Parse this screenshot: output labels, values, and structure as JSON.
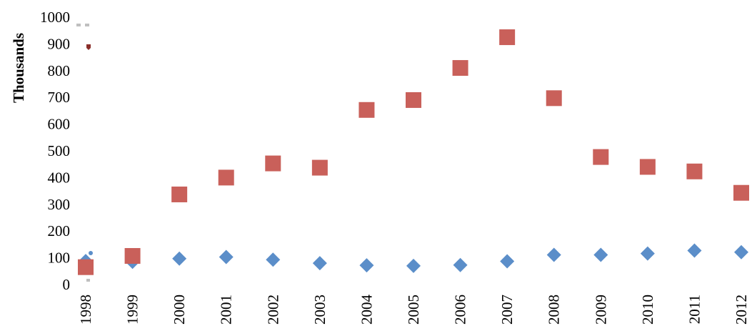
{
  "chart_data": {
    "type": "scatter",
    "title": "",
    "xlabel": "",
    "ylabel": "Thousands",
    "ylim": [
      0,
      1000
    ],
    "y_ticks": [
      "0",
      "100",
      "200",
      "300",
      "400",
      "500",
      "600",
      "700",
      "800",
      "900",
      "1000"
    ],
    "categories": [
      "1998",
      "1999",
      "2000",
      "2001",
      "2002",
      "2003",
      "2004",
      "2005",
      "2006",
      "2007",
      "2008",
      "2009",
      "2010",
      "2011",
      "2012"
    ],
    "grid": false,
    "legend": "none",
    "series": [
      {
        "marker": "diamond",
        "color": "#5b8ec9",
        "values": [
          88,
          85,
          97,
          103,
          93,
          80,
          72,
          70,
          73,
          87,
          111,
          111,
          116,
          127,
          121
        ]
      },
      {
        "marker": "square",
        "color": "#c9605a",
        "values": [
          65,
          107,
          337,
          400,
          453,
          437,
          653,
          690,
          810,
          925,
          697,
          477,
          440,
          423,
          343
        ]
      }
    ]
  }
}
